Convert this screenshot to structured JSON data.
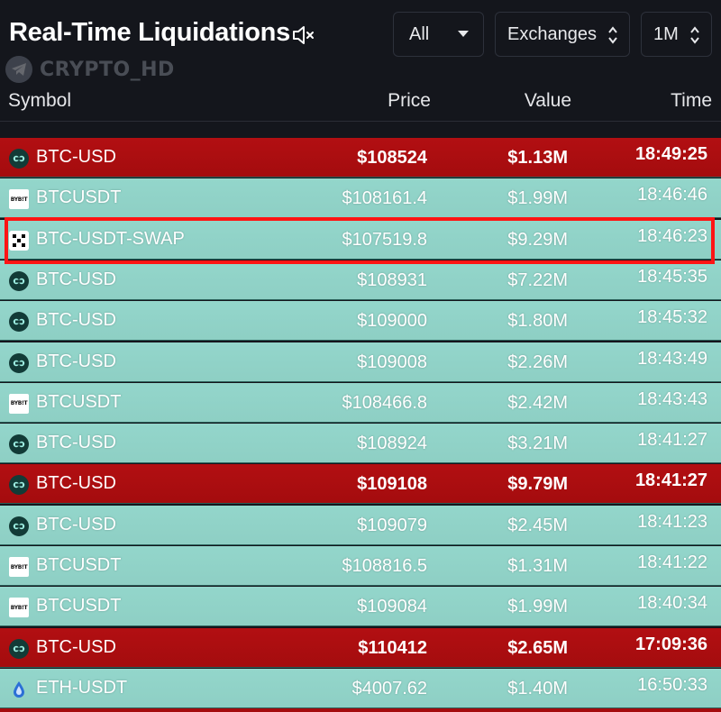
{
  "header": {
    "title": "Real-Time Liquidations",
    "watermark": "CRYPTO_HD",
    "filters": {
      "side": "All",
      "exchanges": "Exchanges",
      "timeframe": "1M"
    }
  },
  "columns": {
    "symbol": "Symbol",
    "price": "Price",
    "value": "Value",
    "time": "Time"
  },
  "colors": {
    "long_row": "#93d6cb",
    "short_row": "#b20f12",
    "highlight": "#ff1414",
    "background": "#14161c"
  },
  "rows": [
    {
      "exchange_icon": "huobi-icon",
      "symbol": "BTC-USD",
      "price": "$108524",
      "value": "$1.13M",
      "time": "18:49:25",
      "side": "short"
    },
    {
      "exchange_icon": "bybit-icon",
      "symbol": "BTCUSDT",
      "price": "$108161.4",
      "value": "$1.99M",
      "time": "18:46:46",
      "side": "long"
    },
    {
      "exchange_icon": "okx-icon",
      "symbol": "BTC-USDT-SWAP",
      "price": "$107519.8",
      "value": "$9.29M",
      "time": "18:46:23",
      "side": "long"
    },
    {
      "exchange_icon": "huobi-icon",
      "symbol": "BTC-USD",
      "price": "$108931",
      "value": "$7.22M",
      "time": "18:45:35",
      "side": "long"
    },
    {
      "exchange_icon": "huobi-icon",
      "symbol": "BTC-USD",
      "price": "$109000",
      "value": "$1.80M",
      "time": "18:45:32",
      "side": "long"
    },
    {
      "exchange_icon": "huobi-icon",
      "symbol": "BTC-USD",
      "price": "$109008",
      "value": "$2.26M",
      "time": "18:43:49",
      "side": "long"
    },
    {
      "exchange_icon": "bybit-icon",
      "symbol": "BTCUSDT",
      "price": "$108466.8",
      "value": "$2.42M",
      "time": "18:43:43",
      "side": "long"
    },
    {
      "exchange_icon": "huobi-icon",
      "symbol": "BTC-USD",
      "price": "$108924",
      "value": "$3.21M",
      "time": "18:41:27",
      "side": "long"
    },
    {
      "exchange_icon": "huobi-icon",
      "symbol": "BTC-USD",
      "price": "$109108",
      "value": "$9.79M",
      "time": "18:41:27",
      "side": "short"
    },
    {
      "exchange_icon": "huobi-icon",
      "symbol": "BTC-USD",
      "price": "$109079",
      "value": "$2.45M",
      "time": "18:41:23",
      "side": "long"
    },
    {
      "exchange_icon": "bybit-icon",
      "symbol": "BTCUSDT",
      "price": "$108816.5",
      "value": "$1.31M",
      "time": "18:41:22",
      "side": "long"
    },
    {
      "exchange_icon": "bybit-icon",
      "symbol": "BTCUSDT",
      "price": "$109084",
      "value": "$1.99M",
      "time": "18:40:34",
      "side": "long"
    },
    {
      "exchange_icon": "huobi-icon",
      "symbol": "BTC-USD",
      "price": "$110412",
      "value": "$2.65M",
      "time": "17:09:36",
      "side": "short"
    },
    {
      "exchange_icon": "eth-drop-icon",
      "symbol": "ETH-USDT",
      "price": "$4007.62",
      "value": "$1.40M",
      "time": "16:50:33",
      "side": "long"
    }
  ]
}
